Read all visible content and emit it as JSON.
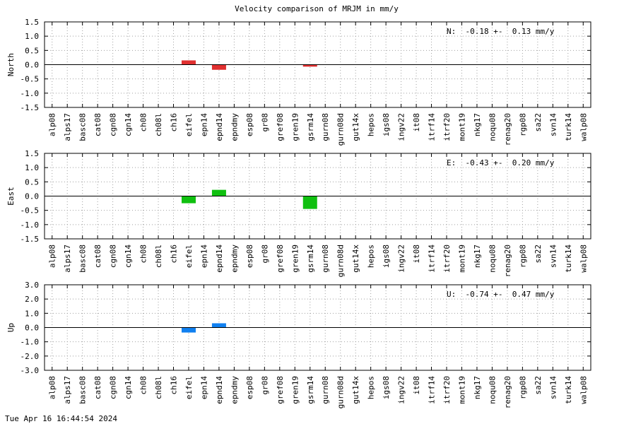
{
  "title": "Velocity comparison of MRJM in mm/y",
  "timestamp": "Tue Apr 16 16:44:54 2024",
  "chart_data": [
    {
      "type": "bar",
      "ylabel": "North",
      "ylim": [
        -1.5,
        1.5
      ],
      "yticks": [
        "1.5",
        "1.0",
        "0.5",
        "0.0",
        "-0.5",
        "-1.0",
        "-1.5"
      ],
      "ytick_values": [
        1.5,
        1.0,
        0.5,
        0.0,
        -0.5,
        -1.0,
        -1.5
      ],
      "annotation": "N:  -0.18 +-  0.13 mm/y",
      "color": "#e03030",
      "grid": true,
      "categories": [
        "alp08",
        "alps17",
        "basc08",
        "cat08",
        "cgn08",
        "cgn14",
        "ch08",
        "ch08l",
        "ch16",
        "eifel",
        "epn14",
        "epnd14",
        "epndmy",
        "esp08",
        "gr08",
        "gref08",
        "gren19",
        "gsrm14",
        "gurn08",
        "gurn08d",
        "gut14x",
        "hepos",
        "igs08",
        "ingv22",
        "it08",
        "itrf14",
        "itrf20",
        "mont19",
        "nkg17",
        "noqu08",
        "renag20",
        "rgp08",
        "sa22",
        "svn14",
        "turk14",
        "walp08"
      ],
      "values": [
        0,
        0,
        0,
        0,
        0,
        0,
        0,
        0,
        0,
        0.15,
        0,
        -0.18,
        0,
        0,
        0,
        0,
        0,
        -0.07,
        0,
        0,
        0,
        0,
        0,
        0,
        0,
        0,
        0,
        0,
        0,
        0,
        0,
        0,
        0,
        0,
        0,
        0
      ]
    },
    {
      "type": "bar",
      "ylabel": "East",
      "ylim": [
        -1.5,
        1.5
      ],
      "yticks": [
        "1.5",
        "1.0",
        "0.5",
        "0.0",
        "-0.5",
        "-1.0",
        "-1.5"
      ],
      "ytick_values": [
        1.5,
        1.0,
        0.5,
        0.0,
        -0.5,
        -1.0,
        -1.5
      ],
      "annotation": "E:  -0.43 +-  0.20 mm/y",
      "color": "#10c010",
      "grid": true,
      "categories": [
        "alp08",
        "alps17",
        "basc08",
        "cat08",
        "cgn08",
        "cgn14",
        "ch08",
        "ch08l",
        "ch16",
        "eifel",
        "epn14",
        "epnd14",
        "epndmy",
        "esp08",
        "gr08",
        "gref08",
        "gren19",
        "gsrm14",
        "gurn08",
        "gurn08d",
        "gut14x",
        "hepos",
        "igs08",
        "ingv22",
        "it08",
        "itrf14",
        "itrf20",
        "mont19",
        "nkg17",
        "noqu08",
        "renag20",
        "rgp08",
        "sa22",
        "svn14",
        "turk14",
        "walp08"
      ],
      "values": [
        0,
        0,
        0,
        0,
        0,
        0,
        0,
        0,
        0,
        -0.25,
        0,
        0.22,
        0,
        0,
        0,
        0,
        0,
        -0.45,
        0,
        0,
        0,
        0,
        0,
        0,
        0,
        0,
        0,
        0,
        0,
        0,
        0,
        0,
        0,
        0,
        0,
        0
      ]
    },
    {
      "type": "bar",
      "ylabel": "Up",
      "ylim": [
        -3.0,
        3.0
      ],
      "yticks": [
        "3.0",
        "2.0",
        "1.0",
        "0.0",
        "-1.0",
        "-2.0",
        "-3.0"
      ],
      "ytick_values": [
        3.0,
        2.0,
        1.0,
        0.0,
        -1.0,
        -2.0,
        -3.0
      ],
      "annotation": "U:  -0.74 +-  0.47 mm/y",
      "color": "#1080f0",
      "grid": true,
      "categories": [
        "alp08",
        "alps17",
        "basc08",
        "cat08",
        "cgn08",
        "cgn14",
        "ch08",
        "ch08l",
        "ch16",
        "eifel",
        "epn14",
        "epnd14",
        "epndmy",
        "esp08",
        "gr08",
        "gref08",
        "gren19",
        "gsrm14",
        "gurn08",
        "gurn08d",
        "gut14x",
        "hepos",
        "igs08",
        "ingv22",
        "it08",
        "itrf14",
        "itrf20",
        "mont19",
        "nkg17",
        "noqu08",
        "renag20",
        "rgp08",
        "sa22",
        "svn14",
        "turk14",
        "walp08"
      ],
      "values": [
        0,
        0,
        0,
        0,
        0,
        0,
        0,
        0,
        0,
        -0.35,
        0,
        0.3,
        0,
        0,
        0,
        0,
        0,
        0,
        0,
        0,
        0,
        0,
        0,
        0,
        0,
        0,
        0,
        0,
        0,
        0,
        0,
        0,
        0,
        0,
        0,
        0
      ]
    }
  ]
}
